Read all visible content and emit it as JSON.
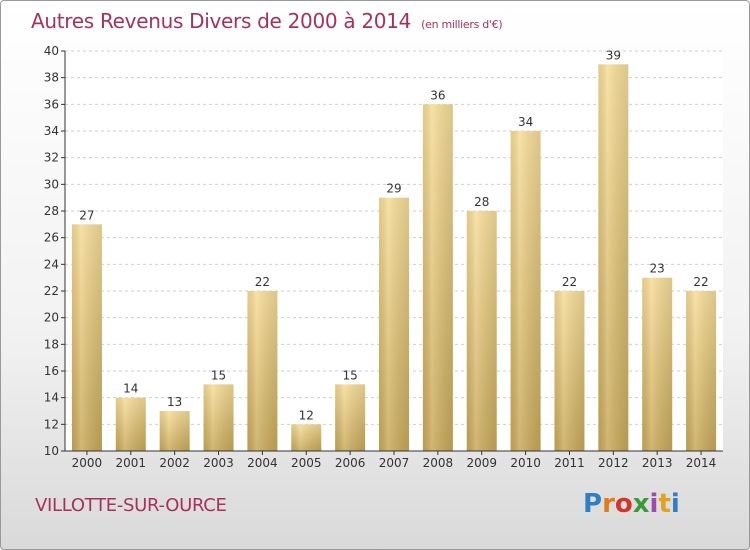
{
  "chart_data": {
    "type": "bar",
    "title": "Autres Revenus Divers de 2000 à 2014",
    "subtitle": "(en milliers d'€)",
    "categories": [
      "2000",
      "2001",
      "2002",
      "2003",
      "2004",
      "2005",
      "2006",
      "2007",
      "2008",
      "2009",
      "2010",
      "2011",
      "2012",
      "2013",
      "2014"
    ],
    "values": [
      27,
      14,
      13,
      15,
      22,
      12,
      15,
      29,
      36,
      28,
      34,
      22,
      39,
      23,
      22
    ],
    "ylim": [
      10,
      40
    ],
    "yticks": [
      10,
      12,
      14,
      16,
      18,
      20,
      22,
      24,
      26,
      28,
      30,
      32,
      34,
      36,
      38,
      40
    ],
    "grid": "horizontal",
    "bar_color": "#e8cf85",
    "bar_color_dark": "#c9a95a"
  },
  "footer": {
    "commune": "VILLOTTE-SUR-OURCE",
    "logo": "Proxiti"
  }
}
